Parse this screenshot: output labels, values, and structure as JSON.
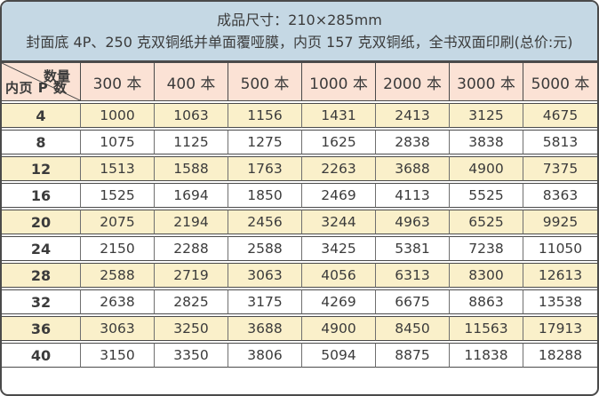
{
  "title": {
    "line1": "成品尺寸：210×285mm",
    "line2": "封面底 4P、250 克双铜纸并单面覆哑膜，内页 157 克双铜纸，全书双面印刷(总价:元)"
  },
  "corner": {
    "top_right": "数量",
    "bottom_left": "内页 P 数"
  },
  "columns": [
    "300 本",
    "400 本",
    "500 本",
    "1000 本",
    "2000 本",
    "3000 本",
    "5000 本"
  ],
  "rows": [
    {
      "pages": "4",
      "prices": [
        "1000",
        "1063",
        "1156",
        "1431",
        "2413",
        "3125",
        "4675"
      ]
    },
    {
      "pages": "8",
      "prices": [
        "1075",
        "1125",
        "1275",
        "1625",
        "2838",
        "3838",
        "5813"
      ]
    },
    {
      "pages": "12",
      "prices": [
        "1513",
        "1588",
        "1763",
        "2263",
        "3688",
        "4900",
        "7375"
      ]
    },
    {
      "pages": "16",
      "prices": [
        "1525",
        "1694",
        "1850",
        "2469",
        "4113",
        "5525",
        "8363"
      ]
    },
    {
      "pages": "20",
      "prices": [
        "2075",
        "2194",
        "2456",
        "3244",
        "4963",
        "6525",
        "9925"
      ]
    },
    {
      "pages": "24",
      "prices": [
        "2150",
        "2288",
        "2588",
        "3425",
        "5381",
        "7238",
        "11050"
      ]
    },
    {
      "pages": "28",
      "prices": [
        "2588",
        "2719",
        "3063",
        "4056",
        "6313",
        "8300",
        "12613"
      ]
    },
    {
      "pages": "32",
      "prices": [
        "2638",
        "2825",
        "3175",
        "4269",
        "6675",
        "8863",
        "13538"
      ]
    },
    {
      "pages": "36",
      "prices": [
        "3063",
        "3250",
        "3688",
        "4900",
        "8450",
        "11563",
        "17913"
      ]
    },
    {
      "pages": "40",
      "prices": [
        "3150",
        "3350",
        "3806",
        "5094",
        "8875",
        "11838",
        "18288"
      ]
    }
  ],
  "colors": {
    "header_blue": "#c5d8e4",
    "header_pink": "#fbe2d5",
    "row_cream": "#faf0ca",
    "row_white": "#ffffff",
    "border_dark": "#4a4a4a",
    "text": "#3b3b3b"
  }
}
